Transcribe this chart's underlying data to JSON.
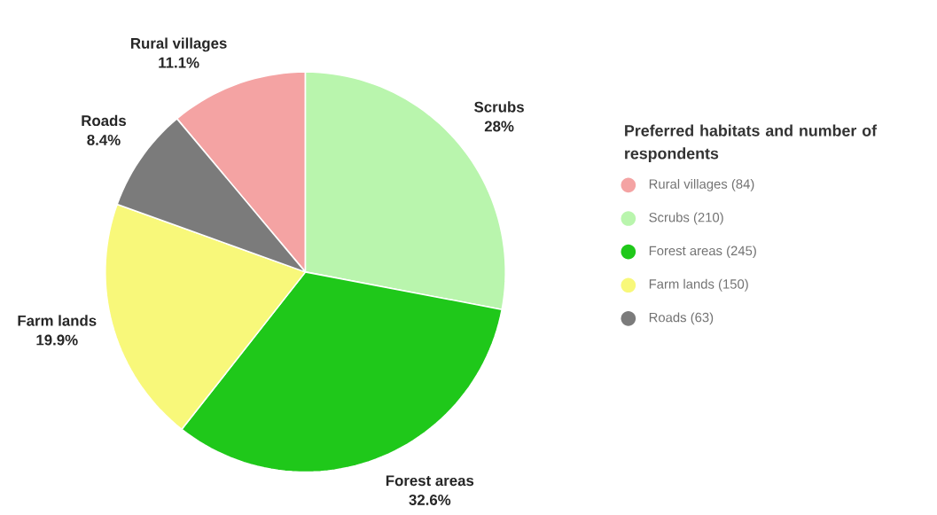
{
  "chart_data": {
    "type": "pie",
    "categories": [
      "Rural villages",
      "Scrubs",
      "Forest areas",
      "Farm lands",
      "Roads"
    ],
    "values": [
      11.1,
      28,
      32.6,
      19.9,
      8.4
    ],
    "annotations": [
      "(84)",
      "(210)",
      "(245)",
      "(150)",
      "(63)"
    ],
    "value_labels": [
      "11.1%",
      "28%",
      "32.6%",
      "19.9%",
      "8.4%"
    ],
    "colors": [
      "#f4a3a3",
      "#b9f5ad",
      "#1fc81a",
      "#f8f87a",
      "#7b7b7b"
    ],
    "legend": "right",
    "legend_title": "Preferred habitats and number of respondents"
  }
}
